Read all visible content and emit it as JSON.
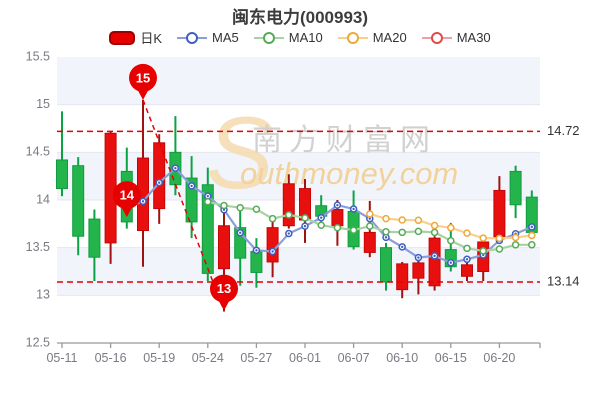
{
  "title": "闽东电力(000993)",
  "legend": {
    "items": [
      {
        "label": "日K",
        "color": "#e60000",
        "border": "#9c0000"
      },
      {
        "label": "MA5"
      },
      {
        "label": "MA10"
      },
      {
        "label": "MA20"
      },
      {
        "label": "MA30"
      }
    ]
  },
  "watermark": {
    "initial": "S",
    "cn": "南方财富网",
    "en": "outhmoney.com"
  },
  "chart_data": {
    "type": "candlestick",
    "ylim": [
      12.5,
      15.5
    ],
    "y_ticks": [
      "15.5",
      "15",
      "14.5",
      "14",
      "13.5",
      "13",
      "12.5"
    ],
    "x_ticks": [
      {
        "label": "05-11",
        "index": 0
      },
      {
        "label": "05-16",
        "index": 3
      },
      {
        "label": "05-19",
        "index": 6
      },
      {
        "label": "05-24",
        "index": 9
      },
      {
        "label": "05-27",
        "index": 12
      },
      {
        "label": "06-01",
        "index": 15
      },
      {
        "label": "06-07",
        "index": 18
      },
      {
        "label": "06-10",
        "index": 21
      },
      {
        "label": "06-15",
        "index": 24
      },
      {
        "label": "06-20",
        "index": 27
      }
    ],
    "up_color": "#e80f0f",
    "up_border": "#c50606",
    "up_wick": "#a01212",
    "down_color": "#24b44c",
    "down_border": "#0f9c40",
    "down_wick": "#0aa344",
    "band_color": "#f1f4fa",
    "grid_color": "#e4e7ef",
    "candles": [
      {
        "date": "05-11",
        "o": 14.42,
        "h": 14.93,
        "l": 14.04,
        "c": 14.12
      },
      {
        "date": "05-12",
        "o": 14.36,
        "h": 14.45,
        "l": 13.42,
        "c": 13.62
      },
      {
        "date": "05-13",
        "o": 13.8,
        "h": 13.9,
        "l": 13.15,
        "c": 13.4
      },
      {
        "date": "05-16",
        "o": 13.55,
        "h": 14.72,
        "l": 13.33,
        "c": 14.7
      },
      {
        "date": "05-17",
        "o": 14.3,
        "h": 14.55,
        "l": 13.7,
        "c": 13.77
      },
      {
        "date": "05-18",
        "o": 13.68,
        "h": 15.05,
        "l": 13.3,
        "c": 14.44
      },
      {
        "date": "05-19",
        "o": 13.91,
        "h": 14.69,
        "l": 13.75,
        "c": 14.6
      },
      {
        "date": "05-20",
        "o": 14.5,
        "h": 14.88,
        "l": 14.05,
        "c": 14.16
      },
      {
        "date": "05-23",
        "o": 14.23,
        "h": 14.46,
        "l": 13.6,
        "c": 13.77
      },
      {
        "date": "05-24",
        "o": 14.16,
        "h": 14.34,
        "l": 13.15,
        "c": 13.23
      },
      {
        "date": "05-25",
        "o": 13.28,
        "h": 13.92,
        "l": 12.83,
        "c": 13.73
      },
      {
        "date": "05-26",
        "o": 13.71,
        "h": 13.91,
        "l": 13.1,
        "c": 13.39
      },
      {
        "date": "05-27",
        "o": 13.46,
        "h": 13.6,
        "l": 13.08,
        "c": 13.24
      },
      {
        "date": "05-30",
        "o": 13.35,
        "h": 13.84,
        "l": 13.19,
        "c": 13.71
      },
      {
        "date": "05-31",
        "o": 13.73,
        "h": 14.27,
        "l": 13.7,
        "c": 14.17
      },
      {
        "date": "06-01",
        "o": 13.79,
        "h": 14.22,
        "l": 13.55,
        "c": 14.12
      },
      {
        "date": "06-02",
        "o": 13.94,
        "h": 14.05,
        "l": 13.75,
        "c": 13.83
      },
      {
        "date": "06-06",
        "o": 13.73,
        "h": 14.0,
        "l": 13.52,
        "c": 13.9
      },
      {
        "date": "06-07",
        "o": 13.88,
        "h": 14.1,
        "l": 13.48,
        "c": 13.51
      },
      {
        "date": "06-08",
        "o": 13.45,
        "h": 13.99,
        "l": 13.4,
        "c": 13.66
      },
      {
        "date": "06-09",
        "o": 13.5,
        "h": 13.55,
        "l": 13.05,
        "c": 13.14
      },
      {
        "date": "06-10",
        "o": 13.06,
        "h": 13.35,
        "l": 12.97,
        "c": 13.33
      },
      {
        "date": "06-13",
        "o": 13.18,
        "h": 13.36,
        "l": 13.01,
        "c": 13.34
      },
      {
        "date": "06-14",
        "o": 13.1,
        "h": 13.62,
        "l": 13.05,
        "c": 13.6
      },
      {
        "date": "06-15",
        "o": 13.48,
        "h": 13.76,
        "l": 13.25,
        "c": 13.3
      },
      {
        "date": "06-16",
        "o": 13.2,
        "h": 13.35,
        "l": 13.15,
        "c": 13.32
      },
      {
        "date": "06-17",
        "o": 13.25,
        "h": 13.58,
        "l": 13.15,
        "c": 13.56
      },
      {
        "date": "06-20",
        "o": 13.61,
        "h": 14.25,
        "l": 13.55,
        "c": 14.1
      },
      {
        "date": "06-21",
        "o": 14.3,
        "h": 14.36,
        "l": 13.81,
        "c": 13.95
      },
      {
        "date": "06-22",
        "o": 14.03,
        "h": 14.1,
        "l": 13.63,
        "c": 13.66
      }
    ],
    "moving_averages": [
      {
        "name": "MA5",
        "period": 5,
        "line": "#8b9ed8",
        "marker": "#3f5fc0"
      },
      {
        "name": "MA10",
        "period": 10,
        "line": "#a6d3a0",
        "marker": "#56ab57"
      },
      {
        "name": "MA20",
        "period": 20,
        "line": "#f7d189",
        "marker": "#f0a73a"
      },
      {
        "name": "MA30",
        "period": 30,
        "line": "#f0a0a0",
        "marker": "#dd4b4b"
      }
    ],
    "reference_lines": [
      {
        "label": "14.72",
        "value": 14.72
      },
      {
        "label": "13.14",
        "value": 13.14
      }
    ],
    "annotations": [
      {
        "label": "15",
        "index": 5,
        "value": 15.05
      },
      {
        "label": "14",
        "index": 4,
        "value": 13.82
      },
      {
        "label": "13",
        "index": 10,
        "value": 12.84
      }
    ],
    "trend_line": {
      "from": {
        "index": 5,
        "value": 15.05
      },
      "to": {
        "index": 10,
        "value": 12.84
      }
    },
    "annotation_color": "#e60000",
    "reference_color": "#e60000"
  }
}
